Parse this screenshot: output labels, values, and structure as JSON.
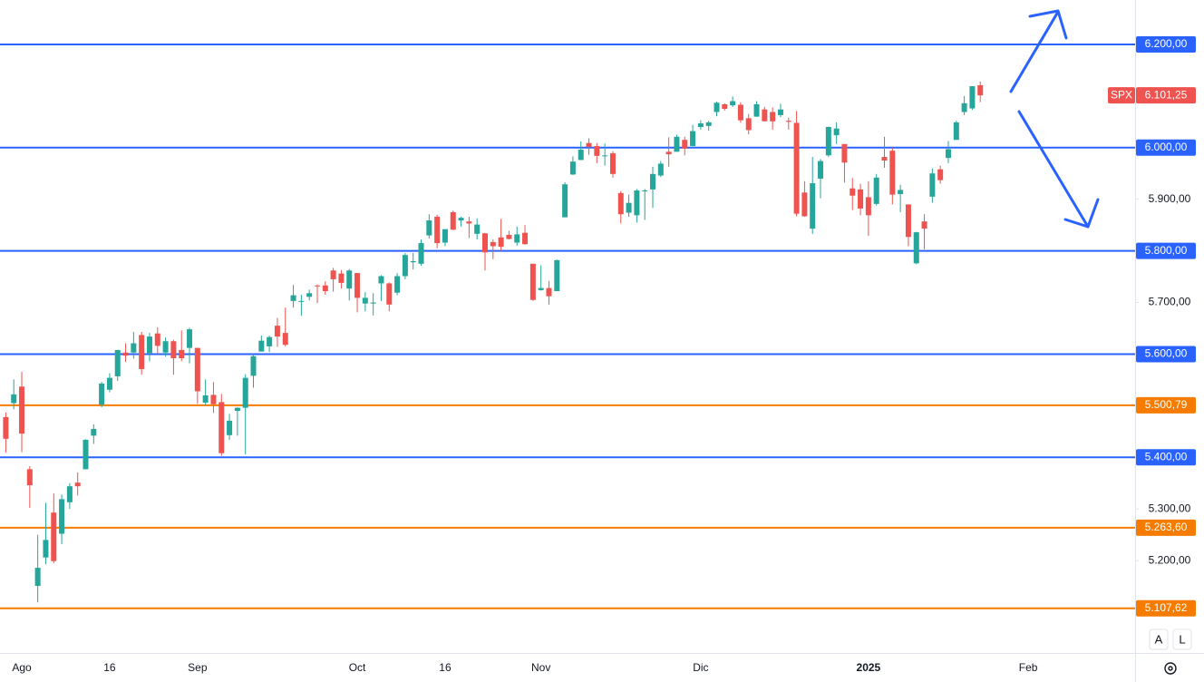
{
  "chart_data": {
    "type": "candlestick",
    "symbol": "SPX",
    "categories": [
      null,
      null,
      "Ago",
      null,
      null,
      null,
      null,
      null,
      null,
      null,
      null,
      null,
      null,
      "16",
      null,
      null,
      null,
      null,
      null,
      null,
      null,
      null,
      null,
      null,
      "Sep",
      null,
      null,
      null,
      null,
      null,
      null,
      null,
      null,
      null,
      null,
      null,
      null,
      null,
      null,
      null,
      null,
      null,
      null,
      null,
      "Oct",
      null,
      null,
      null,
      null,
      null,
      null,
      null,
      null,
      null,
      null,
      "16",
      null,
      null,
      null,
      null,
      null,
      null,
      null,
      null,
      null,
      null,
      null,
      "Nov",
      null,
      null,
      null,
      null,
      null,
      null,
      null,
      null,
      null,
      null,
      null,
      null,
      null,
      null,
      null,
      null,
      null,
      null,
      null,
      "Dic",
      null,
      null,
      null,
      null,
      null,
      null,
      null,
      null,
      null,
      null,
      null,
      null,
      null,
      null,
      null,
      null,
      null,
      null,
      null,
      null,
      "2025",
      null,
      null,
      null,
      null,
      null,
      null,
      null,
      null,
      null,
      null,
      null,
      null,
      null,
      null,
      null,
      null,
      null,
      null,
      null,
      "Feb"
    ],
    "series": {
      "open": [
        5478,
        5505,
        5537,
        5377,
        5151,
        5206,
        5293,
        5252,
        5313,
        5351,
        5377,
        5442,
        5502,
        5531,
        5557,
        5603,
        5603,
        5637,
        5602,
        5640,
        5603,
        5625,
        5608,
        5612,
        5612,
        5506,
        5521,
        5507,
        5443,
        5490,
        5496,
        5558,
        5605,
        5615,
        5655,
        5641,
        5703,
        5702,
        5711,
        5733,
        5733,
        5762,
        5756,
        5727,
        5757,
        5698,
        5698,
        5737,
        5737,
        5719,
        5751,
        5778,
        5775,
        5830,
        5866,
        5816,
        5875,
        5859,
        5857,
        5833,
        5834,
        5817,
        5826,
        5831,
        5816,
        5835,
        5775,
        5724,
        5728,
        5722,
        5865,
        5948,
        5976,
        6009,
        6003,
        5985,
        5989,
        5912,
        5874,
        5869,
        5917,
        5919,
        5946,
        5992,
        5992,
        6015,
        6003,
        6040,
        6042,
        6069,
        6084,
        6082,
        6083,
        6057,
        6060,
        6074,
        6069,
        6063,
        6052,
        6048,
        5913,
        5843,
        5940,
        5985,
        6024,
        6007,
        5921,
        5919,
        5904,
        5891,
        5982,
        5994,
        5910,
        5890,
        5776,
        5857,
        5905,
        5958,
        5980,
        6015,
        6069,
        6076,
        6121,
        null,
        null,
        null,
        null,
        null,
        null
      ],
      "high": [
        5487,
        5551,
        5566,
        5383,
        5250,
        5312,
        5330,
        5328,
        5350,
        5371,
        5435,
        5464,
        5546,
        5563,
        5608,
        5621,
        5643,
        5643,
        5641,
        5652,
        5632,
        5628,
        5646,
        5651,
        5612,
        5551,
        5546,
        5523,
        5484,
        5497,
        5561,
        5600,
        5636,
        5636,
        5670,
        5690,
        5734,
        5715,
        5725,
        5735,
        5741,
        5767,
        5763,
        5765,
        5757,
        5720,
        5718,
        5753,
        5739,
        5757,
        5796,
        5796,
        5822,
        5871,
        5870,
        5842,
        5878,
        5866,
        5866,
        5863,
        5835,
        5822,
        5862,
        5839,
        5847,
        5850,
        5775,
        5772,
        5742,
        5783,
        5933,
        5983,
        6012,
        6018,
        6009,
        6008,
        5993,
        5916,
        5909,
        5920,
        5920,
        5963,
        5974,
        6020,
        6025,
        6021,
        6044,
        6053,
        6052,
        6089,
        6086,
        6099,
        6088,
        6065,
        6090,
        6079,
        6078,
        6085,
        6058,
        6071,
        5935,
        5982,
        5978,
        6041,
        6049,
        6007,
        5941,
        5930,
        5935,
        5949,
        6021,
        6000,
        5928,
        5890,
        5837,
        5871,
        5960,
        5965,
        6013,
        6052,
        6100,
        6119,
        6128,
        null,
        null,
        null,
        null,
        null,
        null
      ],
      "low": [
        5409,
        5493,
        5410,
        5302,
        5119,
        5193,
        5195,
        5232,
        5300,
        5326,
        5377,
        5426,
        5497,
        5526,
        5548,
        5585,
        5591,
        5560,
        5586,
        5600,
        5595,
        5560,
        5586,
        5582,
        5504,
        5501,
        5486,
        5403,
        5434,
        5442,
        5406,
        5535,
        5605,
        5604,
        5614,
        5615,
        5690,
        5674,
        5704,
        5699,
        5715,
        5721,
        5727,
        5704,
        5681,
        5683,
        5675,
        5703,
        5683,
        5714,
        5745,
        5764,
        5771,
        5824,
        5805,
        5809,
        5840,
        5847,
        5825,
        5822,
        5762,
        5784,
        5800,
        5822,
        5810,
        5812,
        5703,
        5723,
        5696,
        5722,
        5865,
        5947,
        5976,
        5986,
        5970,
        5965,
        5942,
        5853,
        5866,
        5855,
        5860,
        5883,
        5943,
        5963,
        5992,
        5985,
        6003,
        6035,
        6033,
        6061,
        6072,
        6079,
        6048,
        6026,
        6060,
        6051,
        6035,
        6059,
        6035,
        5867,
        5866,
        5833,
        5902,
        5982,
        6007,
        5932,
        5879,
        5869,
        5829,
        5888,
        5961,
        5890,
        5875,
        5809,
        5774,
        5803,
        5893,
        5930,
        5970,
        6015,
        6063,
        6073,
        6088,
        null,
        null,
        null,
        null,
        null,
        null
      ],
      "close": [
        5436,
        5522,
        5446,
        5346,
        5186,
        5240,
        5199,
        5319,
        5344,
        5344,
        5434,
        5455,
        5543,
        5554,
        5608,
        5597,
        5621,
        5571,
        5634,
        5616,
        5625,
        5592,
        5592,
        5648,
        5528,
        5520,
        5503,
        5408,
        5471,
        5496,
        5554,
        5596,
        5626,
        5633,
        5634,
        5618,
        5714,
        5703,
        5718,
        5732,
        5722,
        5745,
        5738,
        5762,
        5709,
        5709,
        5700,
        5751,
        5696,
        5751,
        5792,
        5780,
        5815,
        5859,
        5815,
        5842,
        5841,
        5864,
        5853,
        5851,
        5797,
        5809,
        5808,
        5823,
        5832,
        5813,
        5705,
        5728,
        5712,
        5782,
        5929,
        5973,
        5996,
        6001,
        5984,
        5985,
        5949,
        5871,
        5893,
        5917,
        5917,
        5949,
        5969,
        5987,
        6021,
        5998,
        6032,
        6047,
        6049,
        6087,
        6075,
        6090,
        6053,
        6034,
        6084,
        6051,
        6051,
        6074,
        6050,
        5872,
        5867,
        5931,
        5974,
        6040,
        6037,
        5971,
        5907,
        5882,
        5869,
        5942,
        5975,
        5909,
        5918,
        5827,
        5836,
        5843,
        5950,
        5937,
        5997,
        6049,
        6086,
        6119,
        6101.25,
        null,
        null,
        null,
        null,
        null,
        null
      ]
    },
    "up_color": "#26a69a",
    "down_color": "#ef5350",
    "ylim": [
      5021,
      6286
    ],
    "yticks": [
      {
        "value": 5900,
        "label": "5.900,00"
      },
      {
        "value": 5700,
        "label": "5.700,00"
      },
      {
        "value": 5300,
        "label": "5.300,00"
      },
      {
        "value": 5200,
        "label": "5.200,00"
      }
    ],
    "levels": [
      {
        "value": 6200,
        "label": "6.200,00",
        "color": "#2962ff"
      },
      {
        "value": 6000,
        "label": "6.000,00",
        "color": "#2962ff"
      },
      {
        "value": 5800,
        "label": "5.800,00",
        "color": "#2962ff"
      },
      {
        "value": 5600,
        "label": "5.600,00",
        "color": "#2962ff"
      },
      {
        "value": 5500.79,
        "label": "5.500,79",
        "color": "#f57c00"
      },
      {
        "value": 5400,
        "label": "5.400,00",
        "color": "#2962ff"
      },
      {
        "value": 5263.6,
        "label": "5.263,60",
        "color": "#f57c00"
      },
      {
        "value": 5107.62,
        "label": "5.107,62",
        "color": "#f57c00"
      }
    ],
    "last_price": {
      "value": 6101.25,
      "label": "6.101,25"
    }
  },
  "controls": {
    "auto": "A",
    "log": "L"
  }
}
